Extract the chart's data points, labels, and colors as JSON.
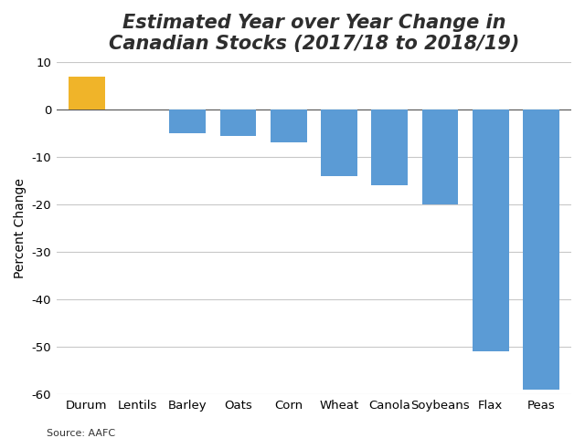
{
  "categories": [
    "Durum",
    "Lentils",
    "Barley",
    "Oats",
    "Corn",
    "Wheat",
    "Canola",
    "Soybeans",
    "Flax",
    "Peas"
  ],
  "values": [
    7,
    0,
    -5,
    -5.5,
    -7,
    -14,
    -16,
    -20,
    -51,
    -59
  ],
  "bar_colors": [
    "#F0B429",
    "#5B9BD5",
    "#5B9BD5",
    "#5B9BD5",
    "#5B9BD5",
    "#5B9BD5",
    "#5B9BD5",
    "#5B9BD5",
    "#5B9BD5",
    "#5B9BD5"
  ],
  "title_line1": "Estimated Year over Year Change in",
  "title_line2": "Canadian Stocks (2017/18 to 2018/19)",
  "ylabel": "Percent Change",
  "ylim": [
    -60,
    10
  ],
  "yticks": [
    10,
    0,
    -10,
    -20,
    -30,
    -40,
    -50,
    -60
  ],
  "source_text": "Source: AAFC",
  "background_color": "#ffffff",
  "grid_color": "#c8c8c8",
  "title_fontsize": 15,
  "label_fontsize": 9.5,
  "ylabel_fontsize": 10,
  "source_fontsize": 8,
  "bar_width": 0.72
}
